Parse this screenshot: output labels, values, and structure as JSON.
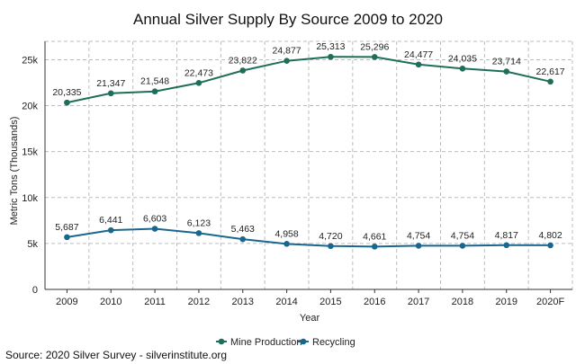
{
  "chart_data": {
    "type": "line",
    "title": "Annual Silver Supply By Source 2009 to 2020",
    "xlabel": "Year",
    "ylabel": "Metric Tons (Thousands)",
    "categories": [
      "2009",
      "2010",
      "2011",
      "2012",
      "2013",
      "2014",
      "2015",
      "2016",
      "2017",
      "2018",
      "2019",
      "2020F"
    ],
    "ylim": [
      0,
      27000
    ],
    "yticks": [
      0,
      5000,
      10000,
      15000,
      20000,
      25000
    ],
    "ytick_labels": [
      "0",
      "5k",
      "10k",
      "15k",
      "20k",
      "25k"
    ],
    "grid": true,
    "legend_position": "bottom-center",
    "series": [
      {
        "name": "Mine Production",
        "color": "#1e6e5a",
        "values": [
          20335,
          21347,
          21548,
          22473,
          23822,
          24877,
          25313,
          25296,
          24477,
          24035,
          23714,
          22617
        ],
        "labels": [
          "20,335",
          "21,347",
          "21,548",
          "22,473",
          "23,822",
          "24,877",
          "25,313",
          "25,296",
          "24,477",
          "24,035",
          "23,714",
          "22,617"
        ]
      },
      {
        "name": "Recycling",
        "color": "#19678f",
        "values": [
          5687,
          6441,
          6603,
          6123,
          5463,
          4958,
          4720,
          4661,
          4754,
          4754,
          4817,
          4802
        ],
        "labels": [
          "5,687",
          "6,441",
          "6,603",
          "6,123",
          "5,463",
          "4,958",
          "4,720",
          "4,661",
          "4,754",
          "4,754",
          "4,817",
          "4,802"
        ]
      }
    ]
  },
  "source": "Source:  2020 Silver Survey - silverinstitute.org"
}
